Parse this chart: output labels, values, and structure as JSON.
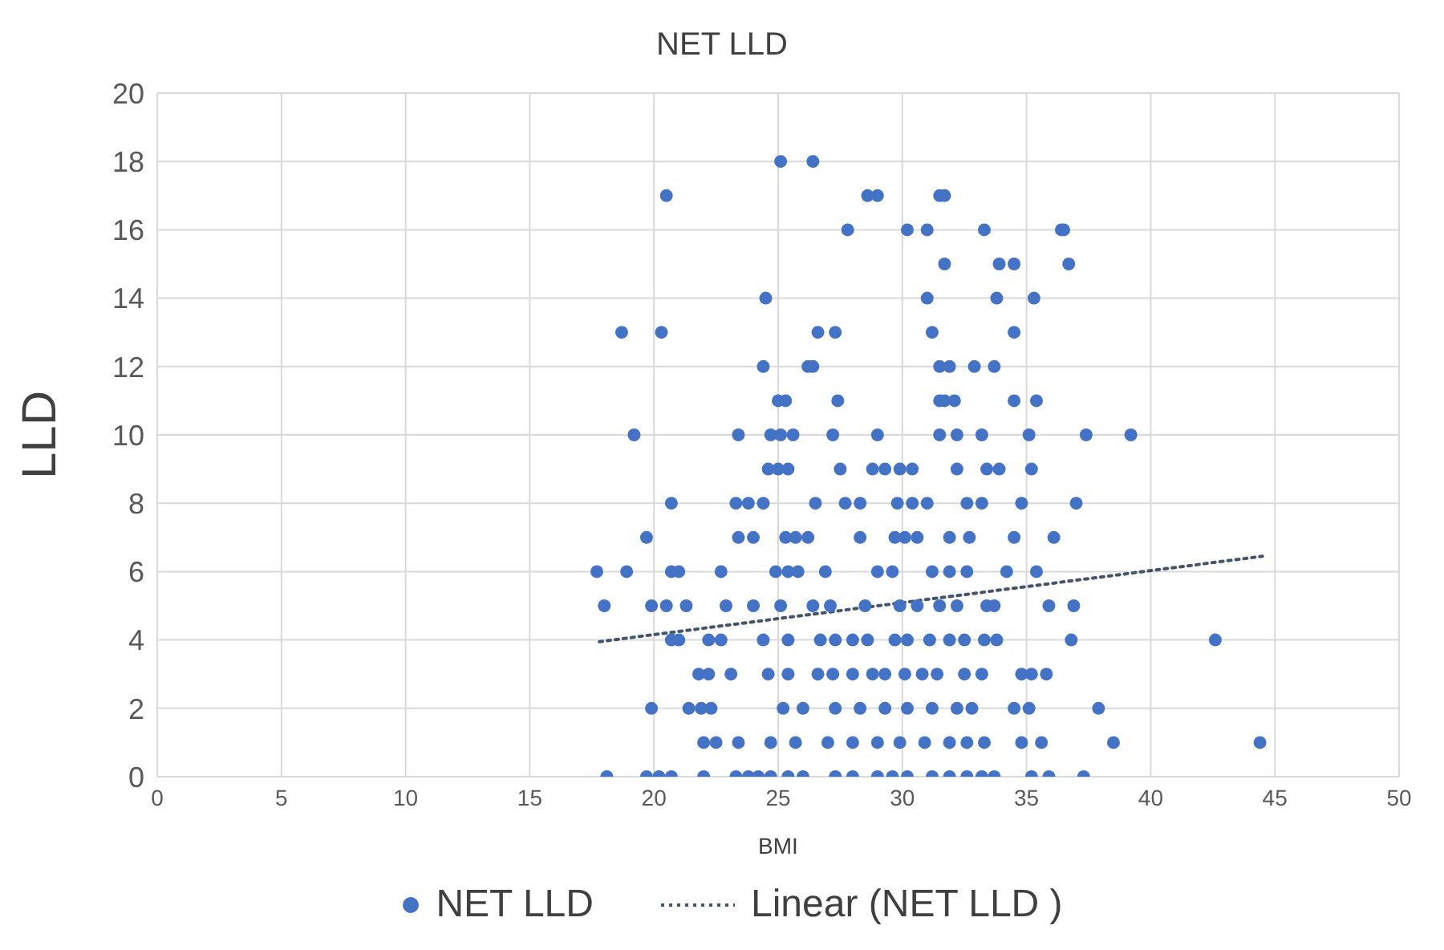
{
  "chart_data": {
    "type": "scatter",
    "title": "NET LLD",
    "xlabel": "BMI",
    "ylabel": "LLD",
    "xlim": [
      0,
      50
    ],
    "xticks": [
      0,
      5,
      10,
      15,
      20,
      25,
      30,
      35,
      40,
      45,
      50
    ],
    "ylim": [
      0,
      20
    ],
    "yticks": [
      0,
      2,
      4,
      6,
      8,
      10,
      12,
      14,
      16,
      18,
      20
    ],
    "grid": true,
    "legend": "bottom",
    "marker": "circle",
    "series": [
      {
        "name": "NET LLD",
        "color": "#4472c4",
        "x": [
          25.1,
          26.4,
          20.5,
          28.6,
          29.0,
          31.5,
          31.7,
          27.8,
          30.2,
          31.0,
          33.3,
          36.4,
          36.5,
          31.7,
          33.9,
          34.5,
          36.7,
          24.5,
          31.0,
          33.8,
          35.3,
          18.7,
          20.3,
          26.6,
          27.3,
          31.2,
          34.5,
          24.4,
          26.2,
          26.4,
          31.5,
          31.9,
          32.9,
          33.7,
          25.0,
          25.3,
          27.4,
          31.5,
          31.7,
          32.1,
          34.5,
          35.4,
          19.2,
          23.4,
          24.7,
          25.1,
          25.6,
          27.2,
          29.0,
          31.5,
          32.2,
          33.2,
          35.1,
          37.4,
          39.2,
          24.6,
          25.0,
          25.4,
          27.5,
          28.8,
          29.3,
          29.9,
          30.4,
          32.2,
          33.4,
          33.9,
          35.2,
          20.7,
          23.3,
          23.8,
          24.4,
          26.5,
          27.7,
          28.3,
          29.8,
          30.4,
          31.0,
          32.6,
          33.2,
          34.8,
          37.0,
          19.7,
          23.4,
          24.0,
          25.3,
          25.7,
          26.2,
          28.3,
          29.7,
          30.1,
          30.6,
          31.9,
          32.7,
          34.5,
          36.1,
          17.7,
          18.9,
          20.7,
          21.0,
          22.7,
          24.9,
          25.4,
          25.8,
          26.9,
          29.0,
          29.6,
          31.2,
          31.9,
          32.6,
          34.2,
          35.4,
          18.0,
          19.9,
          20.5,
          21.3,
          22.9,
          24.0,
          25.1,
          26.4,
          27.1,
          28.5,
          29.9,
          30.6,
          31.5,
          32.2,
          33.4,
          33.7,
          35.9,
          36.9,
          20.7,
          21.0,
          22.2,
          22.7,
          24.4,
          25.4,
          26.7,
          27.3,
          28.0,
          28.6,
          29.7,
          30.2,
          31.1,
          31.9,
          32.5,
          33.3,
          33.8,
          36.8,
          42.6,
          21.8,
          22.2,
          23.1,
          24.6,
          25.4,
          26.6,
          27.2,
          28.0,
          28.8,
          29.3,
          30.1,
          30.8,
          31.4,
          32.5,
          33.2,
          34.8,
          35.2,
          35.8,
          19.9,
          21.4,
          21.9,
          22.3,
          25.2,
          26.0,
          27.3,
          28.3,
          29.3,
          30.2,
          31.2,
          32.2,
          32.8,
          34.5,
          35.1,
          37.9,
          22.0,
          22.5,
          23.4,
          24.7,
          25.7,
          27.0,
          28.0,
          29.0,
          29.9,
          30.9,
          31.9,
          32.6,
          33.3,
          34.8,
          35.6,
          38.5,
          44.4,
          18.1,
          19.7,
          20.2,
          20.7,
          22.0,
          23.3,
          23.8,
          24.2,
          24.7,
          25.4,
          26.0,
          27.3,
          28.0,
          29.0,
          29.6,
          30.2,
          31.2,
          31.9,
          32.6,
          33.2,
          33.7,
          35.2,
          35.9,
          37.3
        ],
        "values": [
          18,
          18,
          17,
          17,
          17,
          17,
          17,
          16,
          16,
          16,
          16,
          16,
          16,
          15,
          15,
          15,
          15,
          14,
          14,
          14,
          14,
          13,
          13,
          13,
          13,
          13,
          13,
          12,
          12,
          12,
          12,
          12,
          12,
          12,
          11,
          11,
          11,
          11,
          11,
          11,
          11,
          11,
          10,
          10,
          10,
          10,
          10,
          10,
          10,
          10,
          10,
          10,
          10,
          10,
          10,
          9,
          9,
          9,
          9,
          9,
          9,
          9,
          9,
          9,
          9,
          9,
          9,
          8,
          8,
          8,
          8,
          8,
          8,
          8,
          8,
          8,
          8,
          8,
          8,
          8,
          8,
          7,
          7,
          7,
          7,
          7,
          7,
          7,
          7,
          7,
          7,
          7,
          7,
          7,
          7,
          6,
          6,
          6,
          6,
          6,
          6,
          6,
          6,
          6,
          6,
          6,
          6,
          6,
          6,
          6,
          6,
          5,
          5,
          5,
          5,
          5,
          5,
          5,
          5,
          5,
          5,
          5,
          5,
          5,
          5,
          5,
          5,
          5,
          5,
          4,
          4,
          4,
          4,
          4,
          4,
          4,
          4,
          4,
          4,
          4,
          4,
          4,
          4,
          4,
          4,
          4,
          4,
          4,
          3,
          3,
          3,
          3,
          3,
          3,
          3,
          3,
          3,
          3,
          3,
          3,
          3,
          3,
          3,
          3,
          3,
          3,
          2,
          2,
          2,
          2,
          2,
          2,
          2,
          2,
          2,
          2,
          2,
          2,
          2,
          2,
          2,
          2,
          1,
          1,
          1,
          1,
          1,
          1,
          1,
          1,
          1,
          1,
          1,
          1,
          1,
          1,
          1,
          1,
          1,
          0,
          0,
          0,
          0,
          0,
          0,
          0,
          0,
          0,
          0,
          0,
          0,
          0,
          0,
          0,
          0,
          0,
          0,
          0,
          0,
          0,
          0,
          0,
          0
        ]
      },
      {
        "name": "Linear (NET LLD )",
        "type": "line",
        "color": "#44546a",
        "line_style": "dotted",
        "marker": "none",
        "x": [
          17.8,
          44.5
        ],
        "values": [
          3.95,
          6.45
        ]
      }
    ]
  }
}
